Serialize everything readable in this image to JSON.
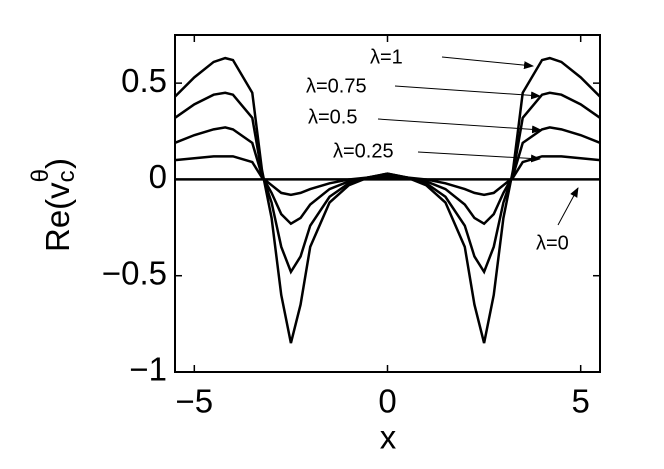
{
  "chart_data": {
    "type": "line",
    "xlabel": "x",
    "ylabel": {
      "text": "Re(v",
      "subscript": "c",
      "superscript": "θ",
      "close": ")"
    },
    "x": [
      -5.5,
      -5,
      -4.5,
      -4.2,
      -4,
      -3.5,
      -3.25,
      -3,
      -2.75,
      -2.5,
      -2.25,
      -2,
      -1.5,
      -1,
      -0.5,
      0,
      0.5,
      1,
      1.5,
      2,
      2.25,
      2.5,
      2.75,
      3,
      3.25,
      3.5,
      4,
      4.2,
      4.5,
      5,
      5.5
    ],
    "series": [
      {
        "name": "λ=1",
        "color": "#000000",
        "values": [
          0.43,
          0.53,
          0.61,
          0.63,
          0.62,
          0.45,
          0.05,
          -0.2,
          -0.6,
          -0.85,
          -0.65,
          -0.35,
          -0.12,
          -0.03,
          0.01,
          0.03,
          0.01,
          -0.03,
          -0.12,
          -0.35,
          -0.65,
          -0.85,
          -0.6,
          -0.2,
          0.05,
          0.45,
          0.62,
          0.63,
          0.61,
          0.53,
          0.43
        ]
      },
      {
        "name": "λ=0.75",
        "color": "#000000",
        "values": [
          0.32,
          0.39,
          0.44,
          0.45,
          0.44,
          0.32,
          0.03,
          -0.12,
          -0.35,
          -0.48,
          -0.4,
          -0.24,
          -0.09,
          -0.02,
          0.01,
          0.03,
          0.01,
          -0.02,
          -0.09,
          -0.24,
          -0.4,
          -0.48,
          -0.35,
          -0.12,
          0.03,
          0.32,
          0.44,
          0.45,
          0.44,
          0.39,
          0.32
        ]
      },
      {
        "name": "λ=0.5",
        "color": "#000000",
        "values": [
          0.19,
          0.23,
          0.26,
          0.27,
          0.26,
          0.19,
          0.02,
          -0.07,
          -0.18,
          -0.23,
          -0.2,
          -0.13,
          -0.05,
          -0.01,
          0.01,
          0.02,
          0.01,
          -0.01,
          -0.05,
          -0.13,
          -0.2,
          -0.23,
          -0.18,
          -0.07,
          0.02,
          0.19,
          0.26,
          0.27,
          0.26,
          0.23,
          0.19
        ]
      },
      {
        "name": "λ=0.25",
        "color": "#000000",
        "values": [
          0.1,
          0.11,
          0.12,
          0.12,
          0.12,
          0.09,
          0.01,
          -0.03,
          -0.07,
          -0.08,
          -0.07,
          -0.05,
          -0.02,
          0,
          0.01,
          0.01,
          0.01,
          0,
          -0.02,
          -0.05,
          -0.07,
          -0.08,
          -0.07,
          -0.03,
          0.01,
          0.09,
          0.12,
          0.12,
          0.12,
          0.11,
          0.1
        ]
      },
      {
        "name": "λ=0",
        "color": "#000000",
        "values": [
          0,
          0,
          0,
          0,
          0,
          0,
          0,
          0,
          0,
          0,
          0,
          0,
          0,
          0,
          0,
          0,
          0,
          0,
          0,
          0,
          0,
          0,
          0,
          0,
          0,
          0,
          0,
          0,
          0,
          0,
          0
        ]
      }
    ],
    "xlim": [
      -5.5,
      5.5
    ],
    "xticks": [
      {
        "value": -5,
        "label": "−5"
      },
      0,
      5
    ],
    "ylim": [
      -1,
      0.75
    ],
    "yticks": [
      {
        "value": -1,
        "label": "−1"
      },
      {
        "value": -0.5,
        "label": "−0.5"
      },
      0,
      0.5
    ]
  }
}
